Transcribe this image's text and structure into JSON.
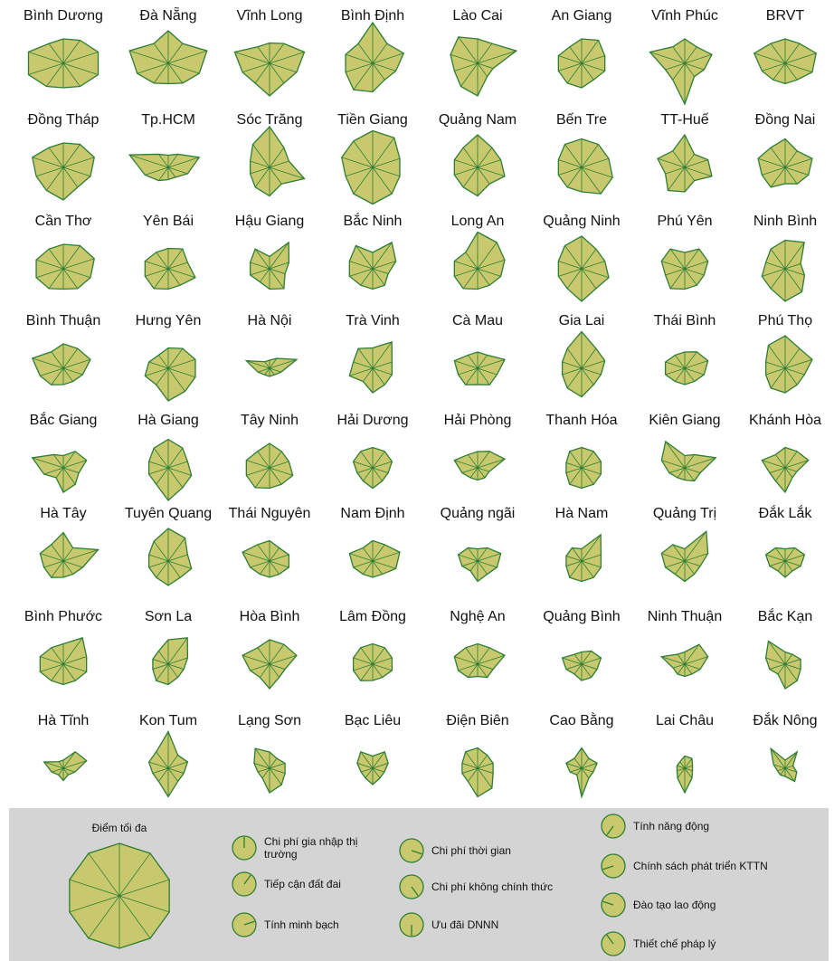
{
  "chart_data": {
    "type": "radar",
    "rlim": [
      0,
      10
    ],
    "color": "#c8c96e",
    "stroke": "#2e7d32",
    "legend_title": "Điểm tối đa",
    "axes": [
      "Chi phí gia nhập thị trường",
      "Tiếp cận đất đai",
      "Tính minh bạch",
      "Chi phí thời gian",
      "Chi phí không chính thức",
      "Ưu đãi DNNN",
      "Tính năng động",
      "Chính sách phát triển KTTN",
      "Đào tạo lao động",
      "Thiết chế pháp lý"
    ],
    "series": [
      {
        "name": "Bình Dương",
        "values": [
          6,
          7,
          9,
          9,
          7,
          6,
          7,
          9,
          9,
          6
        ]
      },
      {
        "name": "Đà Nẵng",
        "values": [
          8,
          6,
          10,
          8,
          6,
          5,
          6,
          8,
          10,
          6
        ]
      },
      {
        "name": "Vĩnh Long",
        "values": [
          5,
          6,
          9,
          7,
          6,
          8,
          6,
          7,
          9,
          5
        ]
      },
      {
        "name": "Bình Định",
        "values": [
          10,
          6,
          8,
          6,
          5,
          7,
          8,
          7,
          7,
          6
        ]
      },
      {
        "name": "Lào Cai",
        "values": [
          6,
          6,
          10,
          4,
          4,
          8,
          7,
          6,
          7,
          8
        ]
      },
      {
        "name": "An Giang",
        "values": [
          6,
          7,
          6,
          6,
          5,
          6,
          6,
          6,
          6,
          5
        ]
      },
      {
        "name": "Vĩnh Phúc",
        "values": [
          6,
          5,
          7,
          5,
          4,
          10,
          5,
          5,
          9,
          5
        ]
      },
      {
        "name": "BRVT",
        "values": [
          6,
          6,
          8,
          7,
          5,
          5,
          5,
          6,
          8,
          6
        ]
      },
      {
        "name": "Đồng Tháp",
        "values": [
          6,
          7,
          8,
          7,
          6,
          8,
          7,
          7,
          8,
          6
        ]
      },
      {
        "name": "Tp.HCM",
        "values": [
          3,
          4,
          8,
          5,
          3,
          3,
          4,
          6,
          10,
          4
        ]
      },
      {
        "name": "Sóc Trăng",
        "values": [
          10,
          6,
          5,
          9,
          5,
          7,
          6,
          5,
          5,
          7
        ]
      },
      {
        "name": "Tiền Giang",
        "values": [
          9,
          9,
          7,
          7,
          8,
          9,
          8,
          7,
          8,
          8
        ]
      },
      {
        "name": "Quảng Nam",
        "values": [
          8,
          6,
          6,
          7,
          5,
          7,
          6,
          6,
          6,
          6
        ]
      },
      {
        "name": "Bến Tre",
        "values": [
          7,
          7,
          7,
          8,
          8,
          6,
          6,
          6,
          6,
          7
        ]
      },
      {
        "name": "TT-Huế",
        "values": [
          8,
          4,
          6,
          7,
          4,
          6,
          7,
          5,
          7,
          5
        ]
      },
      {
        "name": "Đồng Nai",
        "values": [
          7,
          5,
          7,
          6,
          5,
          4,
          6,
          6,
          7,
          6
        ]
      },
      {
        "name": "Cần Thơ",
        "values": [
          6,
          7,
          8,
          7,
          6,
          5,
          6,
          7,
          7,
          6
        ]
      },
      {
        "name": "Yên Bái",
        "values": [
          5,
          6,
          5,
          7,
          5,
          5,
          6,
          6,
          6,
          5
        ]
      },
      {
        "name": "Hậu Giang",
        "values": [
          3,
          8,
          5,
          4,
          6,
          5,
          4,
          5,
          5,
          6
        ]
      },
      {
        "name": "Bắc Ninh",
        "values": [
          4,
          8,
          6,
          4,
          5,
          5,
          5,
          6,
          6,
          7
        ]
      },
      {
        "name": "Long An",
        "values": [
          9,
          8,
          7,
          6,
          5,
          5,
          6,
          6,
          6,
          5
        ]
      },
      {
        "name": "Quảng Ninh",
        "values": [
          8,
          6,
          6,
          7,
          6,
          8,
          6,
          6,
          6,
          7
        ]
      },
      {
        "name": "Phú Yên",
        "values": [
          4,
          6,
          6,
          5,
          5,
          5,
          6,
          5,
          6,
          6
        ]
      },
      {
        "name": "Ninh Bình",
        "values": [
          7,
          8,
          4,
          5,
          7,
          8,
          6,
          6,
          5,
          6
        ]
      },
      {
        "name": "Bình Thuận",
        "values": [
          6,
          6,
          7,
          5,
          4,
          4,
          5,
          6,
          8,
          5
        ]
      },
      {
        "name": "Hưng Yên",
        "values": [
          5,
          6,
          7,
          7,
          7,
          8,
          5,
          6,
          5,
          4
        ]
      },
      {
        "name": "Hà Nội",
        "values": [
          2,
          3,
          7,
          3,
          2,
          2,
          2,
          3,
          6,
          2
        ]
      },
      {
        "name": "Trà Vinh",
        "values": [
          5,
          8,
          5,
          5,
          5,
          6,
          4,
          6,
          5,
          6
        ]
      },
      {
        "name": "Cà Mau",
        "values": [
          4,
          4,
          7,
          5,
          5,
          4,
          5,
          5,
          6,
          4
        ]
      },
      {
        "name": "Gia Lai",
        "values": [
          9,
          6,
          6,
          5,
          5,
          7,
          6,
          5,
          5,
          6
        ]
      },
      {
        "name": "Thái Bình",
        "values": [
          4,
          5,
          6,
          5,
          4,
          4,
          4,
          5,
          5,
          4
        ]
      },
      {
        "name": "Phú Thọ",
        "values": [
          8,
          6,
          7,
          5,
          5,
          6,
          6,
          5,
          5,
          7
        ]
      },
      {
        "name": "Bắc Giang",
        "values": [
          3,
          5,
          6,
          4,
          5,
          6,
          3,
          5,
          8,
          4
        ]
      },
      {
        "name": "Hà Giang",
        "values": [
          7,
          6,
          5,
          6,
          6,
          8,
          5,
          5,
          5,
          6
        ]
      },
      {
        "name": "Tây Ninh",
        "values": [
          6,
          5,
          5,
          6,
          5,
          5,
          6,
          6,
          6,
          5
        ]
      },
      {
        "name": "Hải Dương",
        "values": [
          5,
          5,
          5,
          4,
          4,
          5,
          4,
          4,
          5,
          5
        ]
      },
      {
        "name": "Hải Phòng",
        "values": [
          4,
          5,
          7,
          3,
          3,
          3,
          3,
          4,
          6,
          4
        ]
      },
      {
        "name": "Thanh Hóa",
        "values": [
          5,
          5,
          5,
          5,
          5,
          5,
          5,
          4,
          4,
          5
        ]
      },
      {
        "name": "Kiên Giang",
        "values": [
          3,
          4,
          8,
          4,
          4,
          3,
          3,
          4,
          6,
          8
        ]
      },
      {
        "name": "Khánh Hòa",
        "values": [
          5,
          5,
          6,
          3,
          3,
          6,
          4,
          4,
          6,
          4
        ]
      },
      {
        "name": "Hà Tây",
        "values": [
          7,
          4,
          9,
          5,
          4,
          4,
          5,
          5,
          6,
          5
        ]
      },
      {
        "name": "Tuyên Quang",
        "values": [
          8,
          7,
          5,
          6,
          5,
          6,
          5,
          5,
          5,
          6
        ]
      },
      {
        "name": "Thái Nguyên",
        "values": [
          5,
          4,
          5,
          5,
          4,
          4,
          4,
          5,
          7,
          5
        ]
      },
      {
        "name": "Nam Định",
        "values": [
          5,
          5,
          7,
          6,
          4,
          4,
          4,
          5,
          6,
          4
        ]
      },
      {
        "name": "Quảng ngãi",
        "values": [
          3,
          4,
          6,
          5,
          4,
          5,
          3,
          4,
          5,
          4
        ]
      },
      {
        "name": "Hà Nam",
        "values": [
          3,
          8,
          5,
          5,
          5,
          5,
          5,
          4,
          4,
          4
        ]
      },
      {
        "name": "Quảng Trị",
        "values": [
          3,
          9,
          6,
          4,
          4,
          5,
          4,
          5,
          6,
          5
        ]
      },
      {
        "name": "Đắk Lắk",
        "values": [
          3,
          4,
          5,
          4,
          3,
          4,
          3,
          4,
          5,
          4
        ]
      },
      {
        "name": "Bình Phước",
        "values": [
          5,
          8,
          6,
          6,
          5,
          5,
          5,
          6,
          6,
          5
        ]
      },
      {
        "name": "Sơn La",
        "values": [
          6,
          8,
          5,
          4,
          4,
          5,
          5,
          4,
          4,
          4
        ]
      },
      {
        "name": "Hòa Bình",
        "values": [
          6,
          6,
          7,
          4,
          4,
          6,
          4,
          5,
          7,
          5
        ]
      },
      {
        "name": "Lâm Đồng",
        "values": [
          5,
          5,
          5,
          5,
          4,
          4,
          5,
          5,
          5,
          5
        ]
      },
      {
        "name": "Nghệ An",
        "values": [
          5,
          5,
          7,
          4,
          4,
          3,
          4,
          5,
          6,
          5
        ]
      },
      {
        "name": "Quảng Bình",
        "values": [
          3,
          4,
          5,
          4,
          4,
          4,
          3,
          4,
          5,
          3
        ]
      },
      {
        "name": "Ninh Thuận",
        "values": [
          3,
          6,
          6,
          4,
          3,
          3,
          3,
          3,
          6,
          3
        ]
      },
      {
        "name": "Bắc Kạn",
        "values": [
          3,
          3,
          4,
          4,
          5,
          6,
          3,
          4,
          5,
          7
        ]
      },
      {
        "name": "Hà Tĩnh",
        "values": [
          2,
          5,
          6,
          3,
          2,
          3,
          2,
          3,
          5,
          2
        ]
      },
      {
        "name": "Kon Tum",
        "values": [
          9,
          4,
          5,
          4,
          4,
          7,
          4,
          4,
          5,
          5
        ]
      },
      {
        "name": "Lạng Sơn",
        "values": [
          4,
          3,
          4,
          4,
          5,
          6,
          3,
          3,
          4,
          6
        ]
      },
      {
        "name": "Bạc Liêu",
        "values": [
          3,
          5,
          4,
          3,
          3,
          4,
          3,
          3,
          4,
          5
        ]
      },
      {
        "name": "Điện Biên",
        "values": [
          5,
          4,
          4,
          4,
          6,
          7,
          4,
          4,
          4,
          5
        ]
      },
      {
        "name": "Cao Bằng",
        "values": [
          5,
          3,
          4,
          3,
          3,
          7,
          2,
          3,
          4,
          3
        ]
      },
      {
        "name": "Lai Châu",
        "values": [
          3,
          3,
          2,
          2,
          3,
          6,
          3,
          2,
          2,
          2
        ]
      },
      {
        "name": "Đắk Nông",
        "values": [
          2,
          5,
          2,
          3,
          4,
          2,
          2,
          2,
          3,
          6
        ]
      }
    ]
  }
}
